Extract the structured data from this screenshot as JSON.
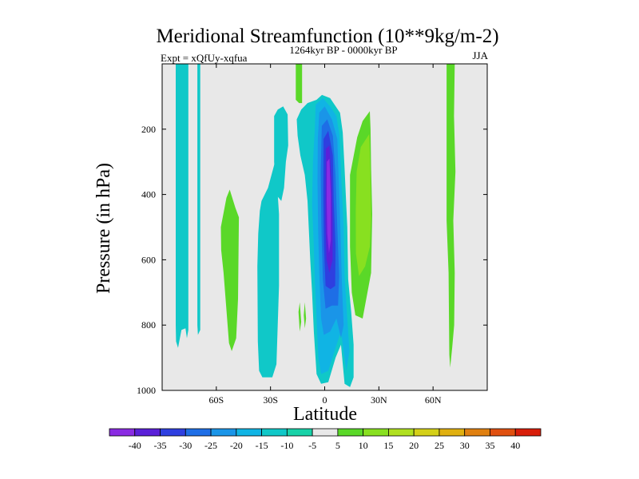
{
  "chart_data": {
    "type": "heatmap",
    "title": "Meridional Streamfunction (10**9kg/m-2)",
    "subtitle_left": "Expt = xQfUy-xqfua",
    "subtitle_center": "1264kyr BP - 0000kyr BP",
    "subtitle_right": "JJA",
    "xlabel": "Latitude",
    "ylabel": "Pressure (in hPa)",
    "xlim": [
      -90,
      90
    ],
    "ylim": [
      0,
      1000
    ],
    "x_ticks": [
      {
        "value": -60,
        "label": "60S"
      },
      {
        "value": -30,
        "label": "30S"
      },
      {
        "value": 0,
        "label": "0"
      },
      {
        "value": 30,
        "label": "30N"
      },
      {
        "value": 60,
        "label": "60N"
      }
    ],
    "y_ticks": [
      {
        "value": 200,
        "label": "200"
      },
      {
        "value": 400,
        "label": "400"
      },
      {
        "value": 600,
        "label": "600"
      },
      {
        "value": 800,
        "label": "800"
      },
      {
        "value": 1000,
        "label": "1000"
      }
    ],
    "background_color": "#e8e8e8",
    "colorbar": {
      "levels": [
        "-40",
        "-35",
        "-30",
        "-25",
        "-20",
        "-15",
        "-10",
        "-5",
        "5",
        "10",
        "15",
        "20",
        "25",
        "30",
        "35",
        "40"
      ],
      "colors": [
        "#8a2be2",
        "#5a1fd8",
        "#2e3fe0",
        "#1e6ee6",
        "#1a95e8",
        "#10b4e4",
        "#10c8c8",
        "#18d2a8",
        "#e8e8e8",
        "#5ad828",
        "#88e020",
        "#b0e020",
        "#d4d018",
        "#e0b010",
        "#e08010",
        "#e05010",
        "#d81e0a"
      ]
    },
    "regions": [
      {
        "label": "westerly band 80S-72S",
        "category": "-10",
        "points": [
          [
            -82.5,
            0
          ],
          [
            -75.5,
            0
          ],
          [
            -75.5,
            815
          ],
          [
            -76.3,
            840
          ],
          [
            -77.1,
            810
          ],
          [
            -79.3,
            815
          ],
          [
            -81.2,
            870
          ],
          [
            -82.3,
            850
          ],
          [
            -82.5,
            800
          ]
        ]
      },
      {
        "label": "narrow band 70S",
        "category": "-10",
        "points": [
          [
            -70.5,
            0
          ],
          [
            -68.9,
            0
          ],
          [
            -68.9,
            815
          ],
          [
            -70.2,
            830
          ],
          [
            -70.5,
            800
          ]
        ]
      },
      {
        "label": "positive cell 55S",
        "category": "10",
        "points": [
          [
            -57.5,
            500
          ],
          [
            -54.4,
            410
          ],
          [
            -52.6,
            385
          ],
          [
            -49.5,
            440
          ],
          [
            -47.5,
            470
          ],
          [
            -48,
            720
          ],
          [
            -49,
            840
          ],
          [
            -51.5,
            880
          ],
          [
            -53,
            855
          ],
          [
            -56,
            640
          ],
          [
            -57.3,
            570
          ]
        ]
      },
      {
        "label": "band 30S",
        "category": "-10",
        "points": [
          [
            -35,
            420
          ],
          [
            -31.4,
            380
          ],
          [
            -28.5,
            320
          ],
          [
            -27,
            290
          ],
          [
            -26.7,
            340
          ],
          [
            -25.3,
            460
          ],
          [
            -25.3,
            680
          ],
          [
            -26.7,
            920
          ],
          [
            -29,
            960
          ],
          [
            -34.5,
            960
          ],
          [
            -36.3,
            940
          ],
          [
            -37,
            850
          ],
          [
            -37.3,
            620
          ],
          [
            -36.8,
            520
          ],
          [
            -35.9,
            450
          ]
        ]
      },
      {
        "label": "band 25S upper",
        "category": "-10",
        "points": [
          [
            -28,
            160
          ],
          [
            -26,
            140
          ],
          [
            -23,
            130
          ],
          [
            -20.5,
            155
          ],
          [
            -20.2,
            250
          ],
          [
            -21.5,
            300
          ],
          [
            -22.5,
            380
          ],
          [
            -24,
            420
          ],
          [
            -27,
            400
          ],
          [
            -28,
            300
          ]
        ]
      },
      {
        "label": "positive sliver 15S",
        "category": "10",
        "points": [
          [
            -16,
            0
          ],
          [
            -12.5,
            0
          ],
          [
            -12.5,
            120
          ],
          [
            -14.2,
            120
          ],
          [
            -16,
            110
          ]
        ]
      },
      {
        "label": "positive blip 14S",
        "category": "10",
        "points": [
          [
            -14.5,
            760
          ],
          [
            -13.8,
            730
          ],
          [
            -13,
            790
          ],
          [
            -13.8,
            820
          ]
        ]
      },
      {
        "label": "positive blip 11S",
        "category": "10",
        "points": [
          [
            -11.6,
            770
          ],
          [
            -11,
            730
          ],
          [
            -10.3,
            780
          ],
          [
            -11,
            810
          ]
        ]
      },
      {
        "label": "equatorial cell",
        "category": "-10",
        "points": [
          [
            -15.5,
            170
          ],
          [
            -13,
            140
          ],
          [
            -9.5,
            120
          ],
          [
            -4.5,
            110
          ],
          [
            -1.5,
            95
          ],
          [
            3,
            105
          ],
          [
            8.5,
            150
          ],
          [
            10,
            210
          ],
          [
            11,
            320
          ],
          [
            12.5,
            500
          ],
          [
            13,
            660
          ],
          [
            14.7,
            760
          ],
          [
            16,
            860
          ],
          [
            16,
            960
          ],
          [
            14,
            990
          ],
          [
            11,
            980
          ],
          [
            9,
            860
          ],
          [
            6,
            900
          ],
          [
            2,
            975
          ],
          [
            -2,
            980
          ],
          [
            -4.5,
            950
          ],
          [
            -6,
            820
          ],
          [
            -7,
            700
          ],
          [
            -8,
            600
          ],
          [
            -9.5,
            420
          ],
          [
            -11,
            340
          ],
          [
            -13.5,
            280
          ],
          [
            -15,
            220
          ]
        ]
      },
      {
        "label": "equatorial cell level 2",
        "category": "-15",
        "points": [
          [
            -5,
            125
          ],
          [
            -1,
            105
          ],
          [
            3,
            130
          ],
          [
            6.5,
            160
          ],
          [
            8.2,
            220
          ],
          [
            9.2,
            350
          ],
          [
            10.5,
            500
          ],
          [
            11,
            650
          ],
          [
            12.5,
            780
          ],
          [
            13.7,
            880
          ],
          [
            12,
            940
          ],
          [
            9,
            820
          ],
          [
            6,
            870
          ],
          [
            2,
            940
          ],
          [
            -2,
            950
          ],
          [
            -3.5,
            900
          ],
          [
            -4.5,
            780
          ],
          [
            -5.5,
            660
          ],
          [
            -6,
            560
          ],
          [
            -7,
            430
          ],
          [
            -6.5,
            300
          ],
          [
            -5.5,
            200
          ]
        ]
      },
      {
        "label": "equatorial cell level 3",
        "category": "-20",
        "points": [
          [
            -3,
            150
          ],
          [
            0,
            130
          ],
          [
            4,
            170
          ],
          [
            7,
            230
          ],
          [
            7.8,
            360
          ],
          [
            8.8,
            520
          ],
          [
            9.5,
            670
          ],
          [
            10.5,
            800
          ],
          [
            9,
            840
          ],
          [
            6.5,
            780
          ],
          [
            3,
            820
          ],
          [
            -0.5,
            830
          ],
          [
            -2,
            780
          ],
          [
            -3,
            640
          ],
          [
            -3.6,
            520
          ],
          [
            -4,
            360
          ],
          [
            -3.8,
            230
          ]
        ]
      },
      {
        "label": "equatorial cell level 4",
        "category": "-25",
        "points": [
          [
            -1.6,
            190
          ],
          [
            1.4,
            170
          ],
          [
            4.5,
            220
          ],
          [
            6,
            340
          ],
          [
            7,
            500
          ],
          [
            8,
            650
          ],
          [
            7.4,
            740
          ],
          [
            4,
            740
          ],
          [
            0.5,
            750
          ],
          [
            -1,
            660
          ],
          [
            -1.8,
            500
          ],
          [
            -2.2,
            330
          ]
        ]
      },
      {
        "label": "equatorial cell level 5",
        "category": "-30",
        "points": [
          [
            -0.6,
            230
          ],
          [
            2,
            205
          ],
          [
            4.5,
            280
          ],
          [
            5,
            420
          ],
          [
            6,
            560
          ],
          [
            5.8,
            680
          ],
          [
            3.2,
            690
          ],
          [
            0.5,
            680
          ],
          [
            -0.4,
            560
          ],
          [
            -0.8,
            400
          ]
        ]
      },
      {
        "label": "equatorial cell level 6",
        "category": "-35",
        "points": [
          [
            0.6,
            260
          ],
          [
            2.6,
            250
          ],
          [
            3.8,
            360
          ],
          [
            4.4,
            480
          ],
          [
            4.4,
            600
          ],
          [
            2.6,
            640
          ],
          [
            1,
            600
          ],
          [
            0.4,
            480
          ]
        ]
      },
      {
        "label": "equatorial cell level 7",
        "category": "-40",
        "points": [
          [
            1.2,
            300
          ],
          [
            2.6,
            290
          ],
          [
            3.4,
            400
          ],
          [
            3.4,
            540
          ],
          [
            2.4,
            580
          ],
          [
            1.4,
            520
          ],
          [
            1.1,
            420
          ]
        ]
      },
      {
        "label": "positive cell 25N",
        "category": "10",
        "points": [
          [
            14,
            340
          ],
          [
            18,
            225
          ],
          [
            21,
            175
          ],
          [
            25,
            145
          ],
          [
            25.4,
            200
          ],
          [
            25.7,
            320
          ],
          [
            26.3,
            460
          ],
          [
            25.7,
            640
          ],
          [
            24,
            690
          ],
          [
            21,
            780
          ],
          [
            17,
            770
          ],
          [
            15,
            700
          ],
          [
            14,
            560
          ]
        ]
      },
      {
        "label": "positive cell 25N inner",
        "category": "15",
        "points": [
          [
            17.7,
            330
          ],
          [
            20,
            255
          ],
          [
            24.7,
            215
          ],
          [
            25.3,
            330
          ],
          [
            25.7,
            470
          ],
          [
            25,
            560
          ],
          [
            22.4,
            620
          ],
          [
            19,
            650
          ],
          [
            17.3,
            580
          ],
          [
            17.2,
            450
          ]
        ]
      },
      {
        "label": "positive band 70N",
        "category": "10",
        "points": [
          [
            67.5,
            0
          ],
          [
            72,
            0
          ],
          [
            71.6,
            160
          ],
          [
            72.4,
            330
          ],
          [
            71.2,
            480
          ],
          [
            72,
            640
          ],
          [
            71.7,
            800
          ],
          [
            70.6,
            870
          ],
          [
            69.5,
            930
          ],
          [
            69,
            890
          ],
          [
            68.6,
            640
          ],
          [
            67.5,
            480
          ]
        ]
      }
    ]
  }
}
